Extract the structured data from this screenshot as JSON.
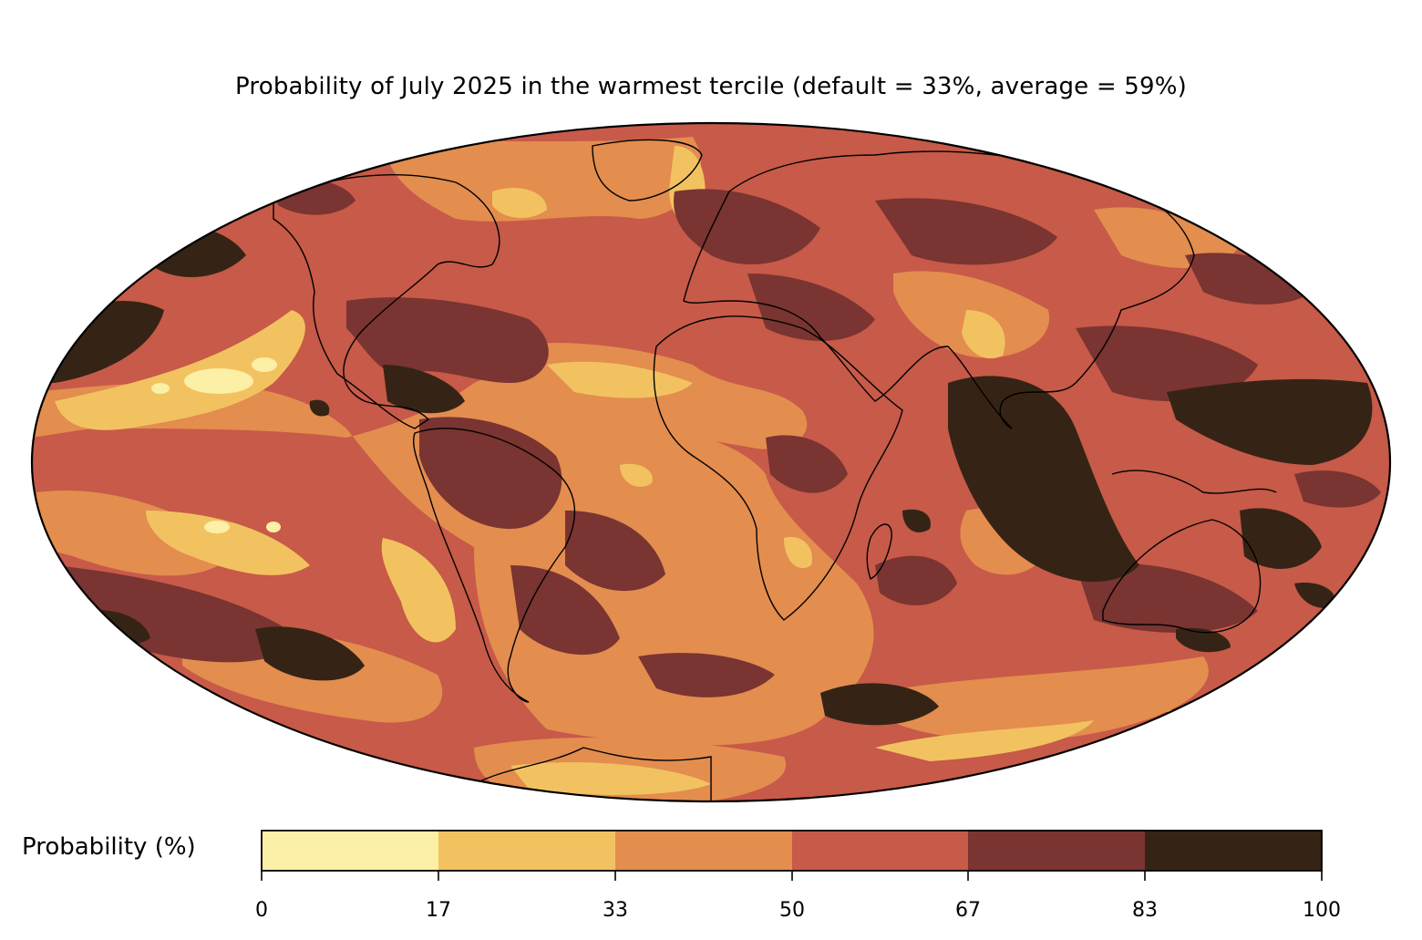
{
  "title": "Probability of July 2025 in the warmest tercile (default = 33%, average = 59%)",
  "colorbar": {
    "label": "Probability (%)",
    "ticks": [
      "0",
      "17",
      "33",
      "50",
      "67",
      "83",
      "100"
    ],
    "colors": [
      "#fcefa6",
      "#f2c261",
      "#e38d4f",
      "#c75a48",
      "#7a3431",
      "#352415"
    ]
  }
}
